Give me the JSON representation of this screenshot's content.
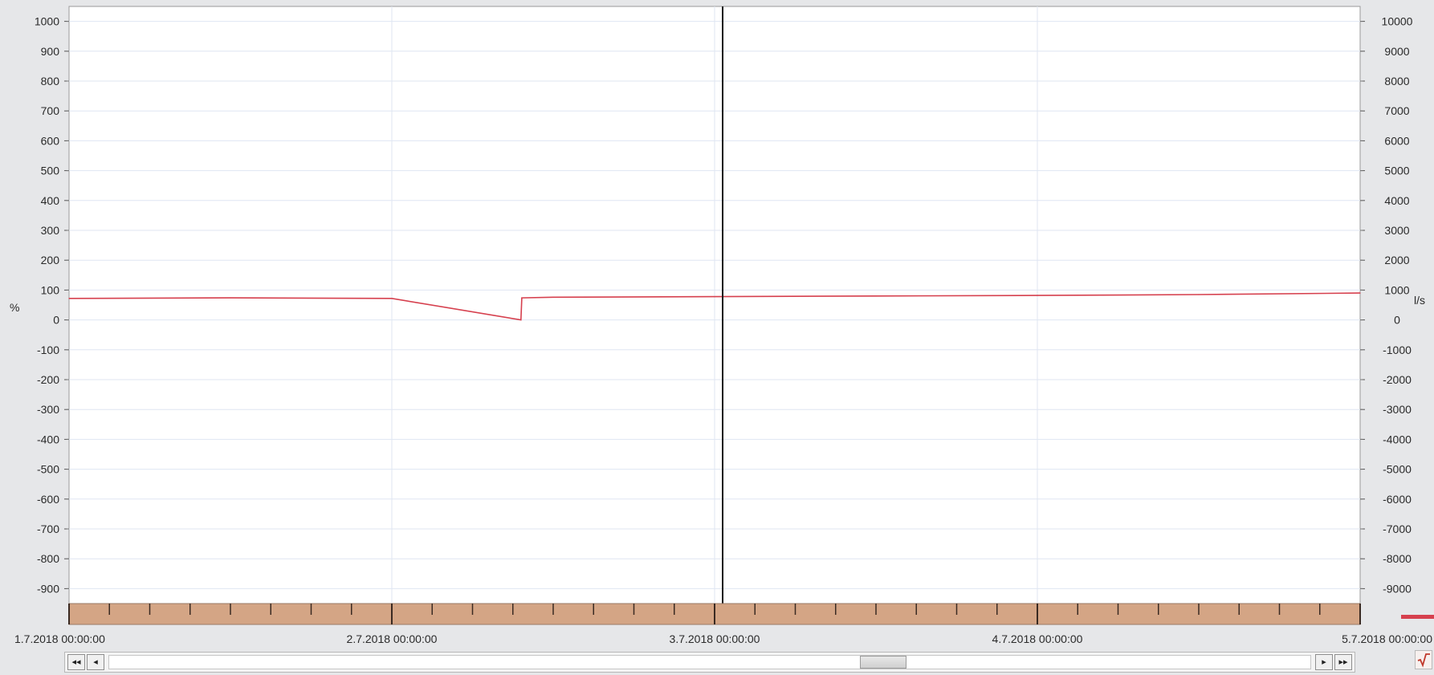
{
  "chart_data": {
    "type": "line",
    "left_axis": {
      "unit": "%",
      "min": -950,
      "max": 1050,
      "ticks": [
        1000,
        900,
        800,
        700,
        600,
        500,
        400,
        300,
        200,
        100,
        0,
        -100,
        -200,
        -300,
        -400,
        -500,
        -600,
        -700,
        -800,
        -900
      ]
    },
    "right_axis": {
      "unit": "l/s",
      "min": -9500,
      "max": 10500,
      "ticks": [
        10000,
        9000,
        8000,
        7000,
        6000,
        5000,
        4000,
        3000,
        2000,
        1000,
        0,
        -1000,
        -2000,
        -3000,
        -4000,
        -5000,
        -6000,
        -7000,
        -8000,
        -9000
      ]
    },
    "x_axis": {
      "start": "1.7.2018 00:00:00",
      "end": "5.7.2018 00:00:00",
      "labels": [
        "1.7.2018 00:00:00",
        "2.7.2018 00:00:00",
        "3.7.2018 00:00:00",
        "4.7.2018 00:00:00",
        "5.7.2018 00:00:00"
      ]
    },
    "cursor_x": "3.7.2018 00:36:00",
    "grid": true,
    "series": [
      {
        "color": "#d6404e",
        "x": [
          "1.7.2018 00:00:00",
          "1.7.2018 12:00:00",
          "2.7.2018 00:00:00",
          "2.7.2018 09:36:00",
          "2.7.2018 09:40:00",
          "2.7.2018 12:00:00",
          "3.7.2018 00:00:00",
          "3.7.2018 12:00:00",
          "4.7.2018 00:00:00",
          "4.7.2018 12:00:00",
          "5.7.2018 00:00:00"
        ],
        "values": [
          72,
          74,
          72,
          0,
          74,
          76,
          78,
          80,
          82,
          85,
          90
        ]
      }
    ]
  },
  "scrollbar": {
    "btn_first": "◂◂",
    "btn_prev": "◂",
    "btn_next": "▸",
    "btn_last": "▸▸",
    "position": 0.65
  }
}
